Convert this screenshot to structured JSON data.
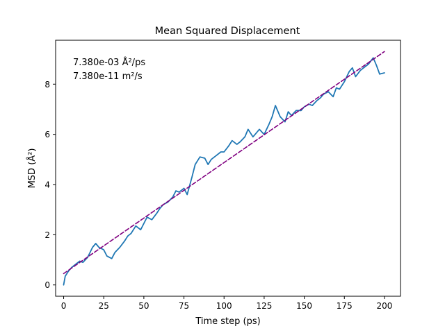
{
  "chart_data": {
    "type": "line",
    "title": "Mean Squared Displacement",
    "xlabel": "Time step (ps)",
    "ylabel": "MSD (Å²)",
    "xlim": [
      -5,
      210
    ],
    "ylim": [
      -0.45,
      9.75
    ],
    "xticks": [
      0,
      25,
      50,
      75,
      100,
      125,
      150,
      175,
      200
    ],
    "yticks": [
      0,
      2,
      4,
      6,
      8
    ],
    "grid": false,
    "annotations": [
      "7.380e-03 Å²/ps",
      "7.380e-11 m²/s"
    ],
    "series": [
      {
        "style": "solid",
        "color": "#1f77b4",
        "x": [
          0,
          1,
          3,
          5,
          8,
          10,
          12,
          15,
          18,
          20,
          22,
          25,
          27,
          30,
          32,
          35,
          38,
          40,
          42,
          45,
          48,
          50,
          52,
          55,
          58,
          60,
          62,
          65,
          68,
          70,
          72,
          75,
          77,
          80,
          82,
          85,
          88,
          90,
          92,
          95,
          98,
          100,
          103,
          105,
          108,
          110,
          113,
          115,
          118,
          120,
          122,
          125,
          128,
          130,
          132,
          135,
          138,
          140,
          142,
          145,
          148,
          150,
          153,
          155,
          158,
          160,
          162,
          165,
          168,
          170,
          172,
          175,
          178,
          180,
          182,
          185,
          188,
          190,
          193,
          195,
          197,
          200
        ],
        "y": [
          0.0,
          0.35,
          0.55,
          0.7,
          0.85,
          0.95,
          0.9,
          1.1,
          1.5,
          1.65,
          1.5,
          1.4,
          1.15,
          1.05,
          1.3,
          1.5,
          1.75,
          1.95,
          2.05,
          2.35,
          2.2,
          2.45,
          2.7,
          2.6,
          2.85,
          3.05,
          3.2,
          3.3,
          3.5,
          3.75,
          3.7,
          3.85,
          3.6,
          4.3,
          4.8,
          5.1,
          5.05,
          4.8,
          5.0,
          5.15,
          5.3,
          5.3,
          5.55,
          5.75,
          5.6,
          5.7,
          5.9,
          6.2,
          5.9,
          6.05,
          6.2,
          6.0,
          6.4,
          6.7,
          7.15,
          6.7,
          6.5,
          6.9,
          6.75,
          6.95,
          6.95,
          7.1,
          7.2,
          7.15,
          7.35,
          7.45,
          7.6,
          7.7,
          7.5,
          7.85,
          7.8,
          8.1,
          8.5,
          8.65,
          8.3,
          8.55,
          8.7,
          8.8,
          9.05,
          8.75,
          8.4,
          8.45
        ]
      },
      {
        "style": "dashed",
        "color": "#800080",
        "x": [
          0,
          200
        ],
        "y": [
          0.45,
          9.3
        ]
      }
    ]
  }
}
